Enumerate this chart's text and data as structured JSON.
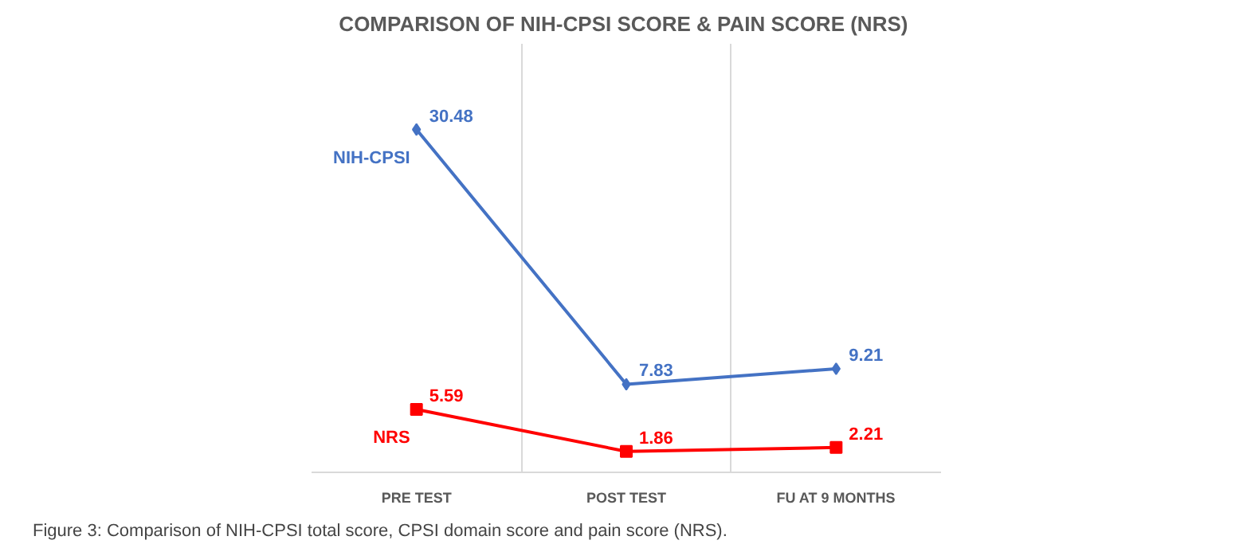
{
  "chart_data": {
    "type": "line",
    "title": "COMPARISON OF NIH-CPSI SCORE &  PAIN SCORE (NRS)",
    "categories": [
      "PRE TEST",
      "POST TEST",
      "FU AT 9 MONTHS"
    ],
    "series": [
      {
        "name": "NIH-CPSI",
        "color": "#4472c4",
        "values": [
          30.48,
          7.83,
          9.21
        ],
        "marker": "diamond"
      },
      {
        "name": "NRS",
        "color": "#ff0000",
        "values": [
          5.59,
          1.86,
          2.21
        ],
        "marker": "square"
      }
    ],
    "data_labels": true,
    "grid": "x",
    "tick_labels": "x",
    "line_style": "solid",
    "annotations": [
      "Figure 3: Comparison of NIH-CPSI total score, CPSI domain score and pain score (NRS)."
    ]
  }
}
